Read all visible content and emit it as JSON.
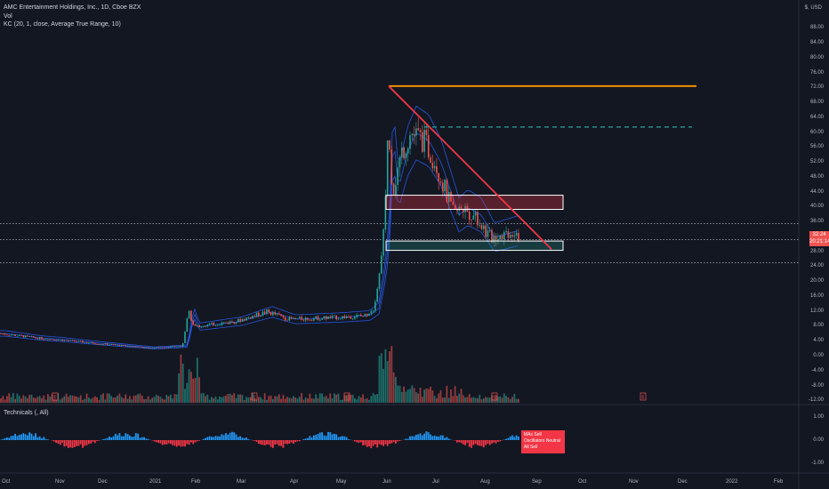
{
  "header": {
    "title": "AMC Entertainment Holdings, Inc., 1D, Cboe BZX",
    "indicator_vol": "Vol",
    "indicator_kc": "KC (20, 1, close, Average True Range, 10)"
  },
  "currency": "$, USD",
  "price_axis": [
    "88.00",
    "84.00",
    "80.00",
    "76.00",
    "72.00",
    "68.00",
    "64.00",
    "60.00",
    "56.00",
    "52.00",
    "48.00",
    "44.00",
    "40.00",
    "36.00",
    "28.00",
    "24.00",
    "20.00",
    "16.00",
    "12.00",
    "8.00",
    "4.00",
    "0.00",
    "-4.00",
    "-8.00",
    "-12.00"
  ],
  "last_price": "32.24",
  "countdown": "20:21:14",
  "tech_panel": {
    "label": "Technicals (, All)",
    "axis": [
      "1.00",
      "0.00",
      "-1.00"
    ],
    "summary": [
      "MAs     Sell",
      "Oscillators  Neutral",
      "All    Sell"
    ]
  },
  "months": [
    "Oct",
    "Nov",
    "Dec",
    "2021",
    "Feb",
    "Mar",
    "Apr",
    "May",
    "Jun",
    "Jul",
    "Aug",
    "Sep",
    "Oct",
    "Nov",
    "Dec",
    "2022",
    "Feb"
  ],
  "earnings_marker": "E",
  "colors": {
    "background": "#131722",
    "bull": "#26a69a",
    "bear": "#ef5350",
    "trendline": "#f23645",
    "resistance": "#ff9800",
    "target": "#26a69a",
    "keltner": "#2962ff",
    "tech_buy": "#2196f3",
    "tech_sell": "#f23645"
  },
  "chart_data": {
    "type": "candlestick",
    "symbol": "AMC",
    "interval": "1D",
    "ylim": [
      -12,
      92
    ],
    "monthly_closes": [
      {
        "month": "Oct",
        "close": 4.6
      },
      {
        "month": "Nov",
        "close": 3.3
      },
      {
        "month": "Dec",
        "close": 2.6
      },
      {
        "month": "2021",
        "close": 2.3
      },
      {
        "month": "Feb",
        "close": 7.5
      },
      {
        "month": "Mar",
        "close": 10.2
      },
      {
        "month": "Apr",
        "close": 9.5
      },
      {
        "month": "May",
        "close": 10.8
      },
      {
        "month": "Jun",
        "close": 54.0
      },
      {
        "month": "Jul",
        "close": 40.0
      },
      {
        "month": "Aug",
        "close": 33.0
      }
    ],
    "annotations": {
      "resistance_line": 72.6,
      "target_dashed": 61.6,
      "zone_upper": [
        39.5,
        43.3
      ],
      "zone_lower": [
        28.5,
        31.0
      ],
      "dotted_levels": [
        35.7,
        31.4,
        25.2
      ],
      "downtrend": {
        "from": 72.6,
        "to": 28.8
      }
    }
  }
}
